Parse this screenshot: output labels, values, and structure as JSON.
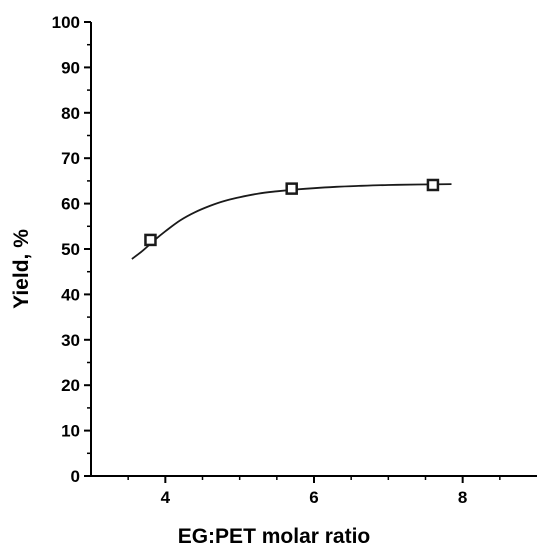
{
  "chart_data": {
    "type": "scatter",
    "xlabel": "EG:PET molar ratio",
    "ylabel": "Yield, %",
    "xlim": [
      3,
      9
    ],
    "ylim": [
      0,
      100
    ],
    "x_ticks": [
      4,
      6,
      8
    ],
    "y_ticks": [
      0,
      10,
      20,
      30,
      40,
      50,
      60,
      70,
      80,
      90,
      100
    ],
    "grid": false,
    "legend": "none",
    "marker": "open-square",
    "series": [
      {
        "points": [
          {
            "x": 3.8,
            "y": 52.0
          },
          {
            "x": 5.7,
            "y": 63.3
          },
          {
            "x": 7.6,
            "y": 64.1
          }
        ]
      }
    ],
    "fit_curve": {
      "x": [
        3.55,
        3.7,
        3.85,
        4.0,
        4.2,
        4.4,
        4.6,
        4.8,
        5.0,
        5.25,
        5.5,
        5.75,
        6.0,
        6.3,
        6.6,
        7.0,
        7.4,
        7.85
      ],
      "y": [
        47.8,
        49.7,
        51.9,
        53.9,
        56.3,
        58.1,
        59.5,
        60.6,
        61.4,
        62.2,
        62.7,
        63.1,
        63.4,
        63.7,
        63.9,
        64.1,
        64.2,
        64.3
      ]
    },
    "colors": {
      "line": "#1a1a1a",
      "marker": "#1a1a1a",
      "axis": "#000000"
    }
  }
}
